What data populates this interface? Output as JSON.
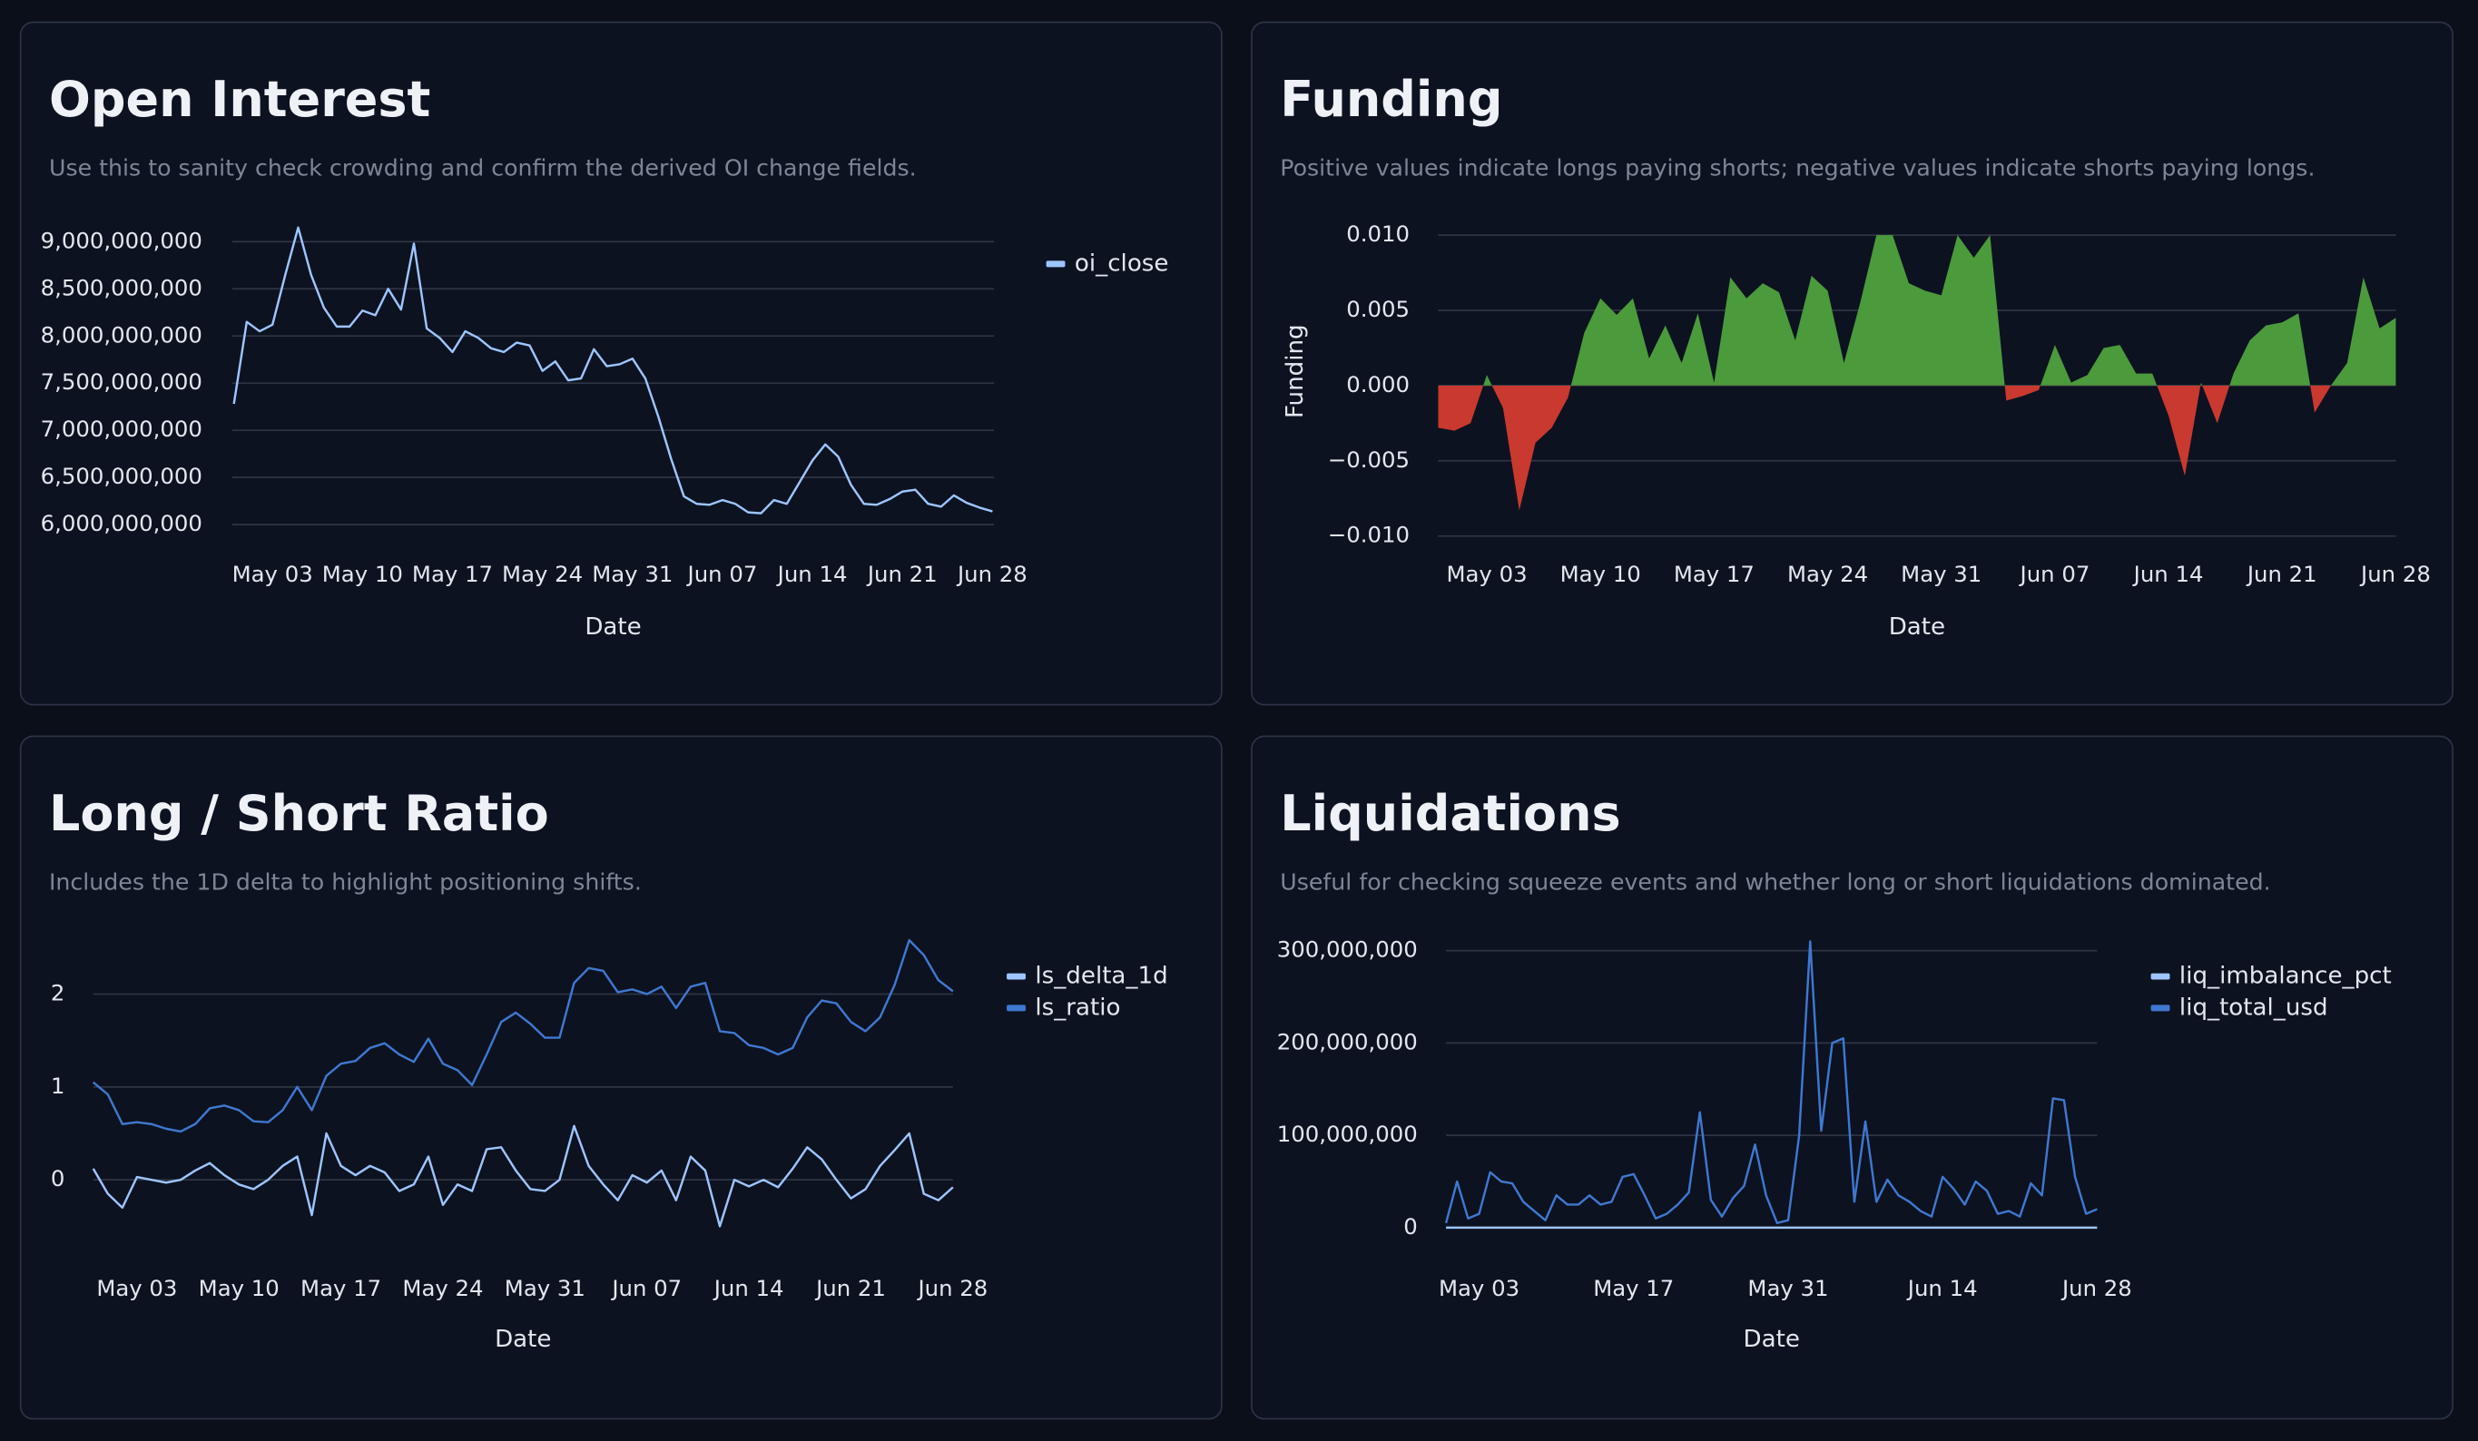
{
  "chart_data": [
    {
      "type": "line",
      "title": "Open Interest",
      "subtitle": "Use this to sanity check crowding and confirm the derived OI change fields.",
      "x_label": "Date",
      "x": [
        "Apr 30",
        "May 01",
        "May 02",
        "May 03",
        "May 04",
        "May 05",
        "May 06",
        "May 07",
        "May 08",
        "May 09",
        "May 10",
        "May 11",
        "May 12",
        "May 13",
        "May 14",
        "May 15",
        "May 16",
        "May 17",
        "May 18",
        "May 19",
        "May 20",
        "May 21",
        "May 22",
        "May 23",
        "May 24",
        "May 25",
        "May 26",
        "May 27",
        "May 28",
        "May 29",
        "May 30",
        "May 31",
        "Jun 01",
        "Jun 02",
        "Jun 03",
        "Jun 04",
        "Jun 05",
        "Jun 06",
        "Jun 07",
        "Jun 08",
        "Jun 09",
        "Jun 10",
        "Jun 11",
        "Jun 12",
        "Jun 13",
        "Jun 14",
        "Jun 15",
        "Jun 16",
        "Jun 17",
        "Jun 18",
        "Jun 19",
        "Jun 20",
        "Jun 21",
        "Jun 22",
        "Jun 23",
        "Jun 24",
        "Jun 25",
        "Jun 26",
        "Jun 27",
        "Jun 28"
      ],
      "xticks": [
        "May 03",
        "May 10",
        "May 17",
        "May 24",
        "May 31",
        "Jun 07",
        "Jun 14",
        "Jun 21",
        "Jun 28"
      ],
      "series": [
        {
          "name": "oi_close",
          "color": "#9ec5fe",
          "values": [
            7280000000,
            8150000000,
            8050000000,
            8120000000,
            8650000000,
            9150000000,
            8650000000,
            8300000000,
            8100000000,
            8100000000,
            8270000000,
            8220000000,
            8500000000,
            8280000000,
            8980000000,
            8080000000,
            7980000000,
            7830000000,
            8050000000,
            7980000000,
            7870000000,
            7830000000,
            7930000000,
            7900000000,
            7630000000,
            7730000000,
            7530000000,
            7550000000,
            7860000000,
            7680000000,
            7700000000,
            7760000000,
            7550000000,
            7150000000,
            6700000000,
            6300000000,
            6220000000,
            6210000000,
            6260000000,
            6220000000,
            6130000000,
            6120000000,
            6260000000,
            6220000000,
            6450000000,
            6680000000,
            6850000000,
            6720000000,
            6420000000,
            6220000000,
            6210000000,
            6270000000,
            6350000000,
            6370000000,
            6220000000,
            6190000000,
            6310000000,
            6230000000,
            6180000000,
            6140000000
          ]
        }
      ],
      "ylim": [
        6000000000,
        9200000000
      ],
      "yticks": [
        {
          "value": 6000000000,
          "label": "6,000,000,000"
        },
        {
          "value": 6500000000,
          "label": "6,500,000,000"
        },
        {
          "value": 7000000000,
          "label": "7,000,000,000"
        },
        {
          "value": 7500000000,
          "label": "7,500,000,000"
        },
        {
          "value": 8000000000,
          "label": "8,000,000,000"
        },
        {
          "value": 8500000000,
          "label": "8,500,000,000"
        },
        {
          "value": 9000000000,
          "label": "9,000,000,000"
        }
      ],
      "grid": true,
      "legend": "right"
    },
    {
      "type": "area",
      "title": "Funding",
      "subtitle": "Positive values indicate longs paying shorts; negative values indicate shorts paying longs.",
      "x_label": "Date",
      "y_label": "Funding",
      "x": [
        "Apr 30",
        "May 01",
        "May 02",
        "May 03",
        "May 04",
        "May 05",
        "May 06",
        "May 07",
        "May 08",
        "May 09",
        "May 10",
        "May 11",
        "May 12",
        "May 13",
        "May 14",
        "May 15",
        "May 16",
        "May 17",
        "May 18",
        "May 19",
        "May 20",
        "May 21",
        "May 22",
        "May 23",
        "May 24",
        "May 25",
        "May 26",
        "May 27",
        "May 28",
        "May 29",
        "May 30",
        "May 31",
        "Jun 01",
        "Jun 02",
        "Jun 03",
        "Jun 04",
        "Jun 05",
        "Jun 06",
        "Jun 07",
        "Jun 08",
        "Jun 09",
        "Jun 10",
        "Jun 11",
        "Jun 12",
        "Jun 13",
        "Jun 14",
        "Jun 15",
        "Jun 16",
        "Jun 17",
        "Jun 18",
        "Jun 19",
        "Jun 20",
        "Jun 21",
        "Jun 22",
        "Jun 23",
        "Jun 24",
        "Jun 25",
        "Jun 26",
        "Jun 27",
        "Jun 28"
      ],
      "xticks": [
        "May 03",
        "May 10",
        "May 17",
        "May 24",
        "May 31",
        "Jun 07",
        "Jun 14",
        "Jun 21",
        "Jun 28"
      ],
      "values": [
        -0.0028,
        -0.003,
        -0.0025,
        0.0007,
        -0.0015,
        -0.0083,
        -0.0038,
        -0.0028,
        -0.0008,
        0.0035,
        0.0058,
        0.0047,
        0.0058,
        0.0018,
        0.004,
        0.0015,
        0.0048,
        0.0002,
        0.0072,
        0.0058,
        0.0068,
        0.0062,
        0.003,
        0.0073,
        0.0063,
        0.0015,
        0.0055,
        0.01,
        0.01,
        0.0068,
        0.0063,
        0.006,
        0.01,
        0.0085,
        0.01,
        -0.001,
        -0.0007,
        -0.0003,
        0.0027,
        0.0002,
        0.0007,
        0.0025,
        0.0027,
        0.0008,
        0.0008,
        -0.002,
        -0.006,
        0.0002,
        -0.0025,
        0.0008,
        0.003,
        0.004,
        0.0042,
        0.0048,
        -0.0018,
        0,
        0.0015,
        0.0072,
        0.0038,
        0.0045
      ],
      "pos_color": "#4b9a3c",
      "neg_color": "#c9392f",
      "ylim": [
        -0.0105,
        0.0105
      ],
      "yticks": [
        {
          "value": -0.01,
          "label": "−0.010"
        },
        {
          "value": -0.005,
          "label": "−0.005"
        },
        {
          "value": 0,
          "label": "0.000"
        },
        {
          "value": 0.005,
          "label": "0.005"
        },
        {
          "value": 0.01,
          "label": "0.010"
        }
      ],
      "grid": true
    },
    {
      "type": "line",
      "title": "Long / Short Ratio",
      "subtitle": "Includes the 1D delta to highlight positioning shifts.",
      "x_label": "Date",
      "x": [
        "Apr 30",
        "May 01",
        "May 02",
        "May 03",
        "May 04",
        "May 05",
        "May 06",
        "May 07",
        "May 08",
        "May 09",
        "May 10",
        "May 11",
        "May 12",
        "May 13",
        "May 14",
        "May 15",
        "May 16",
        "May 17",
        "May 18",
        "May 19",
        "May 20",
        "May 21",
        "May 22",
        "May 23",
        "May 24",
        "May 25",
        "May 26",
        "May 27",
        "May 28",
        "May 29",
        "May 30",
        "May 31",
        "Jun 01",
        "Jun 02",
        "Jun 03",
        "Jun 04",
        "Jun 05",
        "Jun 06",
        "Jun 07",
        "Jun 08",
        "Jun 09",
        "Jun 10",
        "Jun 11",
        "Jun 12",
        "Jun 13",
        "Jun 14",
        "Jun 15",
        "Jun 16",
        "Jun 17",
        "Jun 18",
        "Jun 19",
        "Jun 20",
        "Jun 21",
        "Jun 22",
        "Jun 23",
        "Jun 24",
        "Jun 25",
        "Jun 26",
        "Jun 27",
        "Jun 28"
      ],
      "xticks": [
        "May 03",
        "May 10",
        "May 17",
        "May 24",
        "May 31",
        "Jun 07",
        "Jun 14",
        "Jun 21",
        "Jun 28"
      ],
      "series": [
        {
          "name": "ls_delta_1d",
          "color": "#9ec5fe",
          "values": [
            0.12,
            -0.15,
            -0.3,
            0.03,
            0,
            -0.03,
            0,
            0.1,
            0.18,
            0.05,
            -0.05,
            -0.1,
            0,
            0.15,
            0.25,
            -0.38,
            0.5,
            0.15,
            0.05,
            0.15,
            0.08,
            -0.12,
            -0.05,
            0.25,
            -0.27,
            -0.05,
            -0.12,
            0.33,
            0.35,
            0.1,
            -0.1,
            -0.12,
            0,
            0.58,
            0.15,
            -0.05,
            -0.22,
            0.05,
            -0.03,
            0.1,
            -0.22,
            0.25,
            0.1,
            -0.5,
            0,
            -0.07,
            0,
            -0.08,
            0.12,
            0.35,
            0.22,
            0,
            -0.2,
            -0.1,
            0.15,
            0.32,
            0.5,
            -0.15,
            -0.22,
            -0.08
          ]
        },
        {
          "name": "ls_ratio",
          "color": "#3f78d0",
          "values": [
            1.05,
            0.92,
            0.6,
            0.62,
            0.6,
            0.55,
            0.52,
            0.6,
            0.77,
            0.8,
            0.75,
            0.63,
            0.62,
            0.75,
            1,
            0.75,
            1.12,
            1.25,
            1.28,
            1.42,
            1.47,
            1.35,
            1.27,
            1.52,
            1.25,
            1.18,
            1.02,
            1.35,
            1.7,
            1.8,
            1.68,
            1.53,
            1.53,
            2.12,
            2.28,
            2.25,
            2.02,
            2.05,
            2,
            2.08,
            1.85,
            2.08,
            2.12,
            1.6,
            1.58,
            1.45,
            1.42,
            1.35,
            1.42,
            1.75,
            1.93,
            1.9,
            1.7,
            1.6,
            1.75,
            2.1,
            2.58,
            2.42,
            2.15,
            2.03
          ]
        }
      ],
      "ylim": [
        -0.6,
        2.7
      ],
      "yticks": [
        0,
        1,
        2
      ],
      "grid": true,
      "legend": "right"
    },
    {
      "type": "line",
      "title": "Liquidations",
      "subtitle": "Useful for checking squeeze events and whether long or short liquidations dominated.",
      "x_label": "Date",
      "x": [
        "Apr 30",
        "May 01",
        "May 02",
        "May 03",
        "May 04",
        "May 05",
        "May 06",
        "May 07",
        "May 08",
        "May 09",
        "May 10",
        "May 11",
        "May 12",
        "May 13",
        "May 14",
        "May 15",
        "May 16",
        "May 17",
        "May 18",
        "May 19",
        "May 20",
        "May 21",
        "May 22",
        "May 23",
        "May 24",
        "May 25",
        "May 26",
        "May 27",
        "May 28",
        "May 29",
        "May 30",
        "May 31",
        "Jun 01",
        "Jun 02",
        "Jun 03",
        "Jun 04",
        "Jun 05",
        "Jun 06",
        "Jun 07",
        "Jun 08",
        "Jun 09",
        "Jun 10",
        "Jun 11",
        "Jun 12",
        "Jun 13",
        "Jun 14",
        "Jun 15",
        "Jun 16",
        "Jun 17",
        "Jun 18",
        "Jun 19",
        "Jun 20",
        "Jun 21",
        "Jun 22",
        "Jun 23",
        "Jun 24",
        "Jun 25",
        "Jun 26",
        "Jun 27",
        "Jun 28"
      ],
      "xticks": [
        "May 03",
        "May 17",
        "May 31",
        "Jun 14",
        "Jun 28"
      ],
      "series": [
        {
          "name": "liq_imbalance_pct",
          "color": "#9ec5fe",
          "values": [
            0,
            0,
            0,
            0,
            0,
            0,
            0,
            0,
            0,
            0,
            0,
            0,
            0,
            0,
            0,
            0,
            0,
            0,
            0,
            0,
            0,
            0,
            0,
            0,
            0,
            0,
            0,
            0,
            0,
            0,
            0,
            0,
            0,
            0,
            0,
            0,
            0,
            0,
            0,
            0,
            0,
            0,
            0,
            0,
            0,
            0,
            0,
            0,
            0,
            0,
            0,
            0,
            0,
            0,
            0,
            0,
            0,
            0,
            0,
            0
          ]
        },
        {
          "name": "liq_total_usd",
          "color": "#3f78d0",
          "values": [
            5000000,
            50000000,
            10000000,
            15000000,
            60000000,
            50000000,
            48000000,
            28000000,
            18000000,
            8000000,
            35000000,
            25000000,
            25000000,
            35000000,
            25000000,
            28000000,
            55000000,
            58000000,
            35000000,
            10000000,
            15000000,
            25000000,
            38000000,
            125000000,
            30000000,
            12000000,
            32000000,
            45000000,
            90000000,
            35000000,
            5000000,
            8000000,
            100000000,
            310000000,
            105000000,
            200000000,
            205000000,
            28000000,
            115000000,
            28000000,
            52000000,
            35000000,
            28000000,
            18000000,
            12000000,
            55000000,
            42000000,
            25000000,
            50000000,
            40000000,
            15000000,
            18000000,
            12000000,
            48000000,
            35000000,
            140000000,
            138000000,
            55000000,
            15000000,
            20000000
          ]
        }
      ],
      "ylim": [
        0,
        320000000
      ],
      "yticks": [
        {
          "value": 0,
          "label": "0"
        },
        {
          "value": 100000000,
          "label": "100,000,000"
        },
        {
          "value": 200000000,
          "label": "200,000,000"
        },
        {
          "value": 300000000,
          "label": "300,000,000"
        }
      ],
      "grid": true,
      "legend": "right"
    }
  ]
}
